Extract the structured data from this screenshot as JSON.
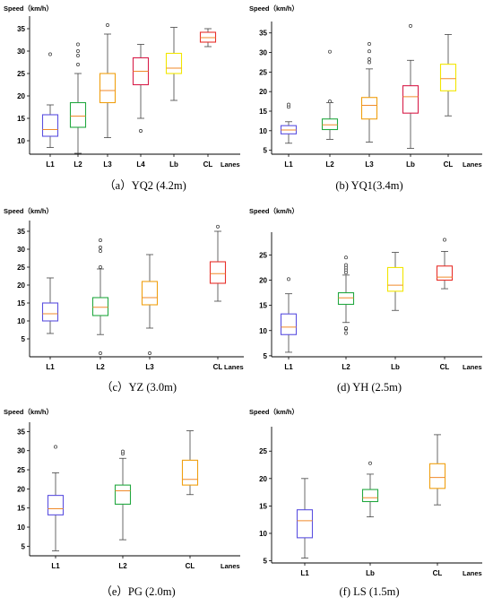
{
  "chart_data": [
    {
      "type": "box",
      "ylabel": "Speed（km/h）",
      "xlabel": "Lanes",
      "caption": "（a）YQ2 (4.2m)",
      "ylim": [
        7,
        37
      ],
      "yticks": [
        10,
        15,
        20,
        25,
        30,
        35
      ],
      "boxes": [
        {
          "category": "L1",
          "color": "#5b50e0",
          "min": 8.5,
          "q1": 11,
          "median": 12.5,
          "q3": 15.8,
          "max": 18,
          "outliers": [
            29.3
          ]
        },
        {
          "category": "L2",
          "color": "#22a840",
          "min": 7.2,
          "q1": 13,
          "median": 15.5,
          "q3": 18.5,
          "max": 25,
          "outliers": [
            27,
            29,
            30,
            31.5
          ]
        },
        {
          "category": "L3",
          "color": "#f0a010",
          "min": 10.7,
          "q1": 18.5,
          "median": 21.2,
          "q3": 25,
          "max": 33.8,
          "outliers": [
            35.8
          ]
        },
        {
          "category": "L4",
          "color": "#d81e4a",
          "min": 15,
          "q1": 22.5,
          "median": 25.5,
          "q3": 28.5,
          "max": 31.5,
          "outliers": [
            12.2
          ]
        },
        {
          "category": "Lb",
          "color": "#f2e600",
          "min": 19,
          "q1": 25,
          "median": 26.2,
          "q3": 29.5,
          "max": 35.3,
          "outliers": []
        },
        {
          "category": "CL",
          "color": "#e8302a",
          "min": 31,
          "q1": 32,
          "median": 33,
          "q3": 34.2,
          "max": 35,
          "outliers": []
        }
      ]
    },
    {
      "type": "box",
      "ylabel": "Speed（km/h）",
      "xlabel": "Lanes",
      "caption": "(b) YQ1(3.4m)",
      "ylim": [
        4,
        37
      ],
      "yticks": [
        5,
        10,
        15,
        20,
        25,
        30,
        35
      ],
      "boxes": [
        {
          "category": "L1",
          "color": "#5b50e0",
          "min": 6.8,
          "q1": 9.2,
          "median": 10.2,
          "q3": 11.3,
          "max": 12.3,
          "outliers": [
            16.1,
            16.7
          ]
        },
        {
          "category": "L2",
          "color": "#22a840",
          "min": 7.8,
          "q1": 10.3,
          "median": 11.5,
          "q3": 13,
          "max": 17.2,
          "outliers": [
            17.5,
            30.2
          ]
        },
        {
          "category": "L3",
          "color": "#f0a010",
          "min": 7.1,
          "q1": 13,
          "median": 16.5,
          "q3": 18.5,
          "max": 25.8,
          "outliers": [
            27.5,
            28.3,
            30.3,
            32.2
          ]
        },
        {
          "category": "Lb",
          "color": "#d81e4a",
          "min": 5.5,
          "q1": 14.5,
          "median": 18.7,
          "q3": 21.5,
          "max": 28,
          "outliers": [
            36.8
          ]
        },
        {
          "category": "CL",
          "color": "#f2e600",
          "min": 13.8,
          "q1": 20.2,
          "median": 23.3,
          "q3": 27,
          "max": 34.6,
          "outliers": []
        }
      ]
    },
    {
      "type": "box",
      "ylabel": "Speed（km/h）",
      "xlabel": "Lanes",
      "caption": "（c）YZ (3.0m)",
      "ylim": [
        0,
        37
      ],
      "yticks": [
        5,
        10,
        15,
        20,
        25,
        30,
        35
      ],
      "boxes": [
        {
          "category": "L1",
          "color": "#5b50e0",
          "min": 6.5,
          "q1": 10,
          "median": 12,
          "q3": 15,
          "max": 22,
          "outliers": []
        },
        {
          "category": "L2",
          "color": "#22a840",
          "min": 6.2,
          "q1": 11.5,
          "median": 13.8,
          "q3": 16.5,
          "max": 24.5,
          "outliers": [
            1,
            25,
            29.5,
            30.5,
            32.5
          ]
        },
        {
          "category": "L3",
          "color": "#f0a010",
          "min": 8,
          "q1": 14.5,
          "median": 16.5,
          "q3": 21,
          "max": 28.5,
          "outliers": [
            1
          ]
        },
        {
          "category": "CL",
          "color": "#e8302a",
          "min": 15.5,
          "q1": 20.5,
          "median": 23.2,
          "q3": 26.5,
          "max": 35,
          "outliers": [
            36.3
          ]
        }
      ]
    },
    {
      "type": "box",
      "ylabel": "Speed（km/h）",
      "xlabel": "Lanes",
      "caption": "(d) YH (2.5m)",
      "ylim": [
        4.8,
        28.8
      ],
      "yticks": [
        5,
        10,
        15,
        20,
        25
      ],
      "boxes": [
        {
          "category": "L1",
          "color": "#5b50e0",
          "min": 5.7,
          "q1": 9.2,
          "median": 10.7,
          "q3": 13.3,
          "max": 17.3,
          "outliers": [
            20.2
          ]
        },
        {
          "category": "L2",
          "color": "#22a840",
          "min": 11.6,
          "q1": 15.2,
          "median": 16.5,
          "q3": 17.5,
          "max": 21,
          "outliers": [
            9.5,
            10.3,
            10.5,
            21.5,
            22,
            22.5,
            23,
            24.5
          ]
        },
        {
          "category": "Lb",
          "color": "#f2e600",
          "min": 14,
          "q1": 17.8,
          "median": 19,
          "q3": 22.5,
          "max": 25.5,
          "outliers": []
        },
        {
          "category": "CL",
          "color": "#e8302a",
          "min": 18.3,
          "q1": 20,
          "median": 20.6,
          "q3": 22.8,
          "max": 25.7,
          "outliers": [
            28
          ]
        }
      ]
    },
    {
      "type": "box",
      "ylabel": "Speed（km/h）",
      "xlabel": "Lanes",
      "caption": "（e）PG (2.0m)",
      "ylim": [
        2.5,
        36.5
      ],
      "yticks": [
        5,
        10,
        15,
        20,
        25,
        30,
        35
      ],
      "boxes": [
        {
          "category": "L1",
          "color": "#5b50e0",
          "min": 3.8,
          "q1": 13.2,
          "median": 14.8,
          "q3": 18.3,
          "max": 24.2,
          "outliers": [
            31
          ]
        },
        {
          "category": "L2",
          "color": "#22a840",
          "min": 6.7,
          "q1": 16,
          "median": 19.5,
          "q3": 21,
          "max": 28,
          "outliers": [
            29.2,
            29.8
          ]
        },
        {
          "category": "CL",
          "color": "#f0a010",
          "min": 18.5,
          "q1": 21,
          "median": 22.5,
          "q3": 27.5,
          "max": 35.2,
          "outliers": []
        }
      ]
    },
    {
      "type": "box",
      "ylabel": "Speed（km/h）",
      "xlabel": "Lanes",
      "caption": "(f) LS (1.5m)",
      "ylim": [
        4.6,
        28.8
      ],
      "yticks": [
        5,
        10,
        15,
        20,
        25
      ],
      "boxes": [
        {
          "category": "L1",
          "color": "#5b50e0",
          "min": 5.5,
          "q1": 9.2,
          "median": 12.3,
          "q3": 14.3,
          "max": 20,
          "outliers": []
        },
        {
          "category": "Lb",
          "color": "#22a840",
          "min": 13,
          "q1": 15.8,
          "median": 16.5,
          "q3": 18,
          "max": 20.8,
          "outliers": [
            22.8
          ]
        },
        {
          "category": "CL",
          "color": "#f0a010",
          "min": 15.2,
          "q1": 18.2,
          "median": 20.2,
          "q3": 22.7,
          "max": 28,
          "outliers": []
        }
      ]
    }
  ]
}
